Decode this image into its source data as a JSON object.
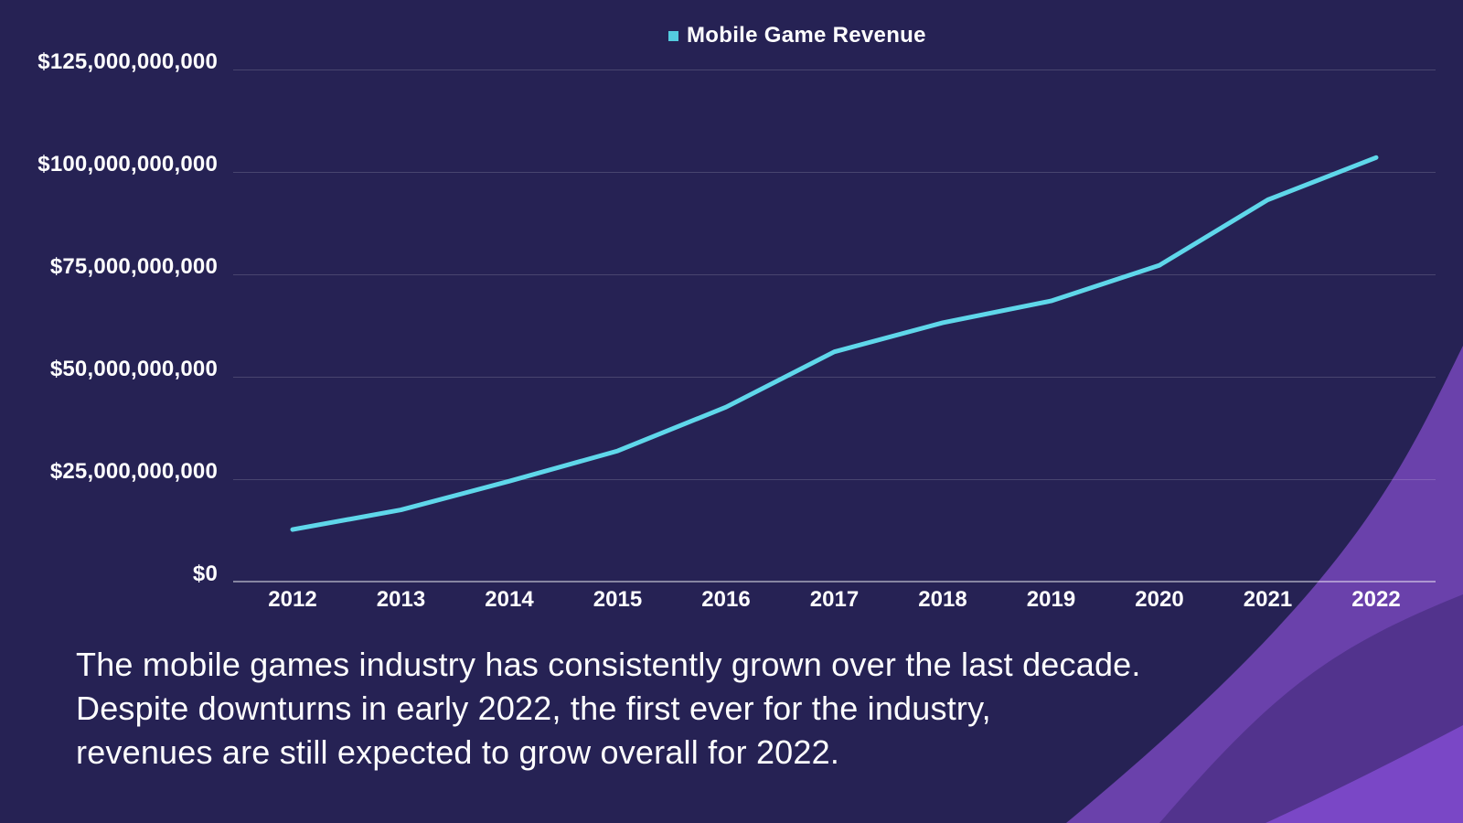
{
  "background": {
    "page_color": "#262254",
    "decoration_colors": [
      "#6A41AB",
      "#52338D",
      "#7A47C6"
    ]
  },
  "legend": {
    "label": "Mobile Game Revenue",
    "marker_color": "#54CBDF"
  },
  "chart_data": {
    "type": "line",
    "title": "",
    "legend_position": "top-center",
    "grid": true,
    "x_categories": [
      "2012",
      "2013",
      "2014",
      "2015",
      "2016",
      "2017",
      "2018",
      "2019",
      "2020",
      "2021",
      "2022"
    ],
    "series": [
      {
        "name": "Mobile Game Revenue",
        "color": "#5FD7EA",
        "values_usd_billions": [
          12.7,
          17.5,
          24.5,
          31.9,
          42.6,
          56.1,
          63.2,
          68.5,
          77.2,
          93.2,
          103.5
        ]
      }
    ],
    "y_axis": {
      "unit": "USD",
      "ylim_usd_billions": [
        0,
        125
      ],
      "tick_interval_usd_billions": 25,
      "tick_values_usd_billions": [
        0,
        25,
        50,
        75,
        100,
        125
      ],
      "tick_labels": [
        "$0",
        "$25,000,000,000",
        "$50,000,000,000",
        "$75,000,000,000",
        "$100,000,000,000",
        "$125,000,000,000"
      ]
    }
  },
  "caption": {
    "lines": [
      "The mobile games industry has consistently grown over the last decade.",
      "Despite downturns in early 2022, the first ever for the industry,",
      "revenues are still expected to grow overall for 2022."
    ]
  }
}
